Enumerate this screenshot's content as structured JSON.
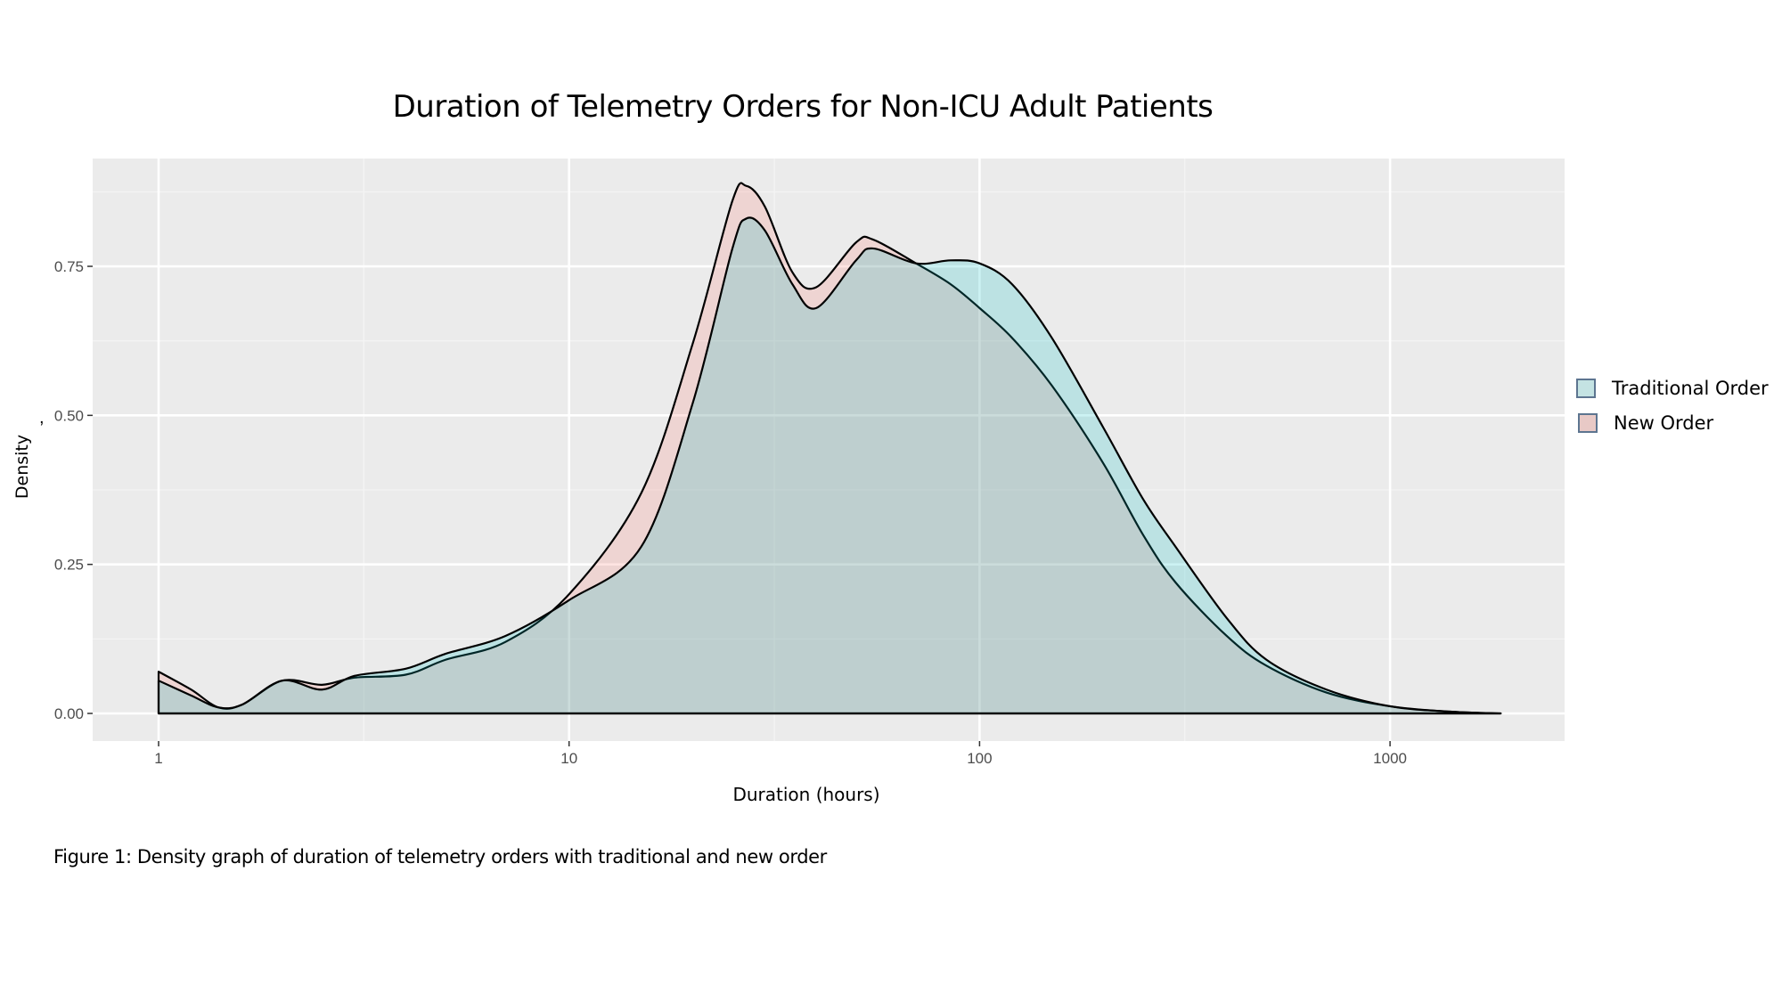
{
  "chart_data": {
    "type": "area",
    "title": "Duration of Telemetry Orders for Non-ICU Adult Patients",
    "xlabel": "Duration (hours)",
    "ylabel": "Density",
    "stray_mark": ",",
    "caption": "Figure 1: Density graph of duration of telemetry orders with traditional and new order",
    "x_scale": "log10",
    "xlim": [
      0.75,
      2200
    ],
    "ylim": [
      -0.045,
      0.93
    ],
    "x_ticks": [
      {
        "value": 1,
        "label": "1"
      },
      {
        "value": 10,
        "label": "10"
      },
      {
        "value": 100,
        "label": "100"
      },
      {
        "value": 1000,
        "label": "1000"
      }
    ],
    "y_ticks": [
      {
        "value": 0,
        "label": "0.00"
      },
      {
        "value": 0.25,
        "label": "0.25"
      },
      {
        "value": 0.5,
        "label": "0.50"
      },
      {
        "value": 0.75,
        "label": "0.75"
      }
    ],
    "grid": true,
    "legend_position": "right",
    "series": [
      {
        "name": "Traditional Order",
        "color": "#00bfc4",
        "x": [
          1,
          1.2,
          1.4,
          1.6,
          2,
          2.5,
          3,
          4,
          5,
          7,
          10,
          15,
          20,
          25,
          27,
          30,
          35,
          40,
          50,
          55,
          70,
          85,
          100,
          120,
          150,
          200,
          250,
          300,
          400,
          500,
          700,
          1000,
          1400,
          1860
        ],
        "y": [
          0.055,
          0.03,
          0.01,
          0.015,
          0.055,
          0.04,
          0.063,
          0.075,
          0.1,
          0.13,
          0.19,
          0.28,
          0.52,
          0.78,
          0.83,
          0.81,
          0.72,
          0.68,
          0.76,
          0.78,
          0.755,
          0.76,
          0.755,
          0.72,
          0.63,
          0.48,
          0.36,
          0.28,
          0.16,
          0.09,
          0.04,
          0.012,
          0.003,
          0
        ]
      },
      {
        "name": "New Order",
        "color": "#f8766d",
        "x": [
          1,
          1.2,
          1.4,
          1.6,
          2,
          2.5,
          3,
          4,
          5,
          7,
          10,
          15,
          20,
          25,
          27,
          30,
          35,
          40,
          50,
          55,
          70,
          85,
          100,
          120,
          150,
          200,
          250,
          300,
          400,
          500,
          700,
          1000,
          1400,
          1860
        ],
        "y": [
          0.07,
          0.04,
          0.01,
          0.015,
          0.055,
          0.048,
          0.06,
          0.065,
          0.09,
          0.12,
          0.2,
          0.37,
          0.62,
          0.86,
          0.885,
          0.85,
          0.74,
          0.715,
          0.79,
          0.795,
          0.755,
          0.72,
          0.68,
          0.63,
          0.55,
          0.42,
          0.3,
          0.22,
          0.13,
          0.08,
          0.035,
          0.012,
          0.003,
          0
        ]
      }
    ]
  }
}
